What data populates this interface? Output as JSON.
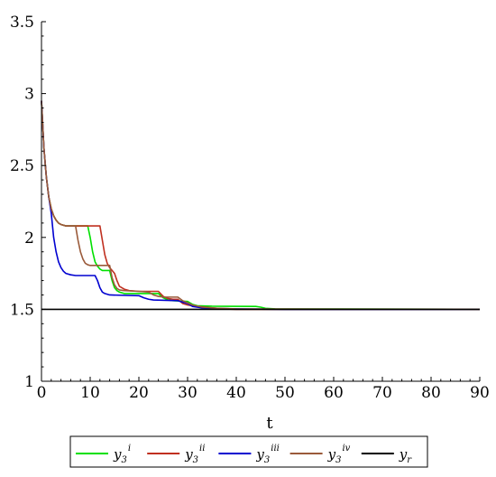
{
  "chart_data": {
    "type": "line",
    "xlabel": "t",
    "xlim": [
      0,
      90
    ],
    "ylim": [
      1,
      3.5
    ],
    "x_ticks": [
      "0",
      "10",
      "20",
      "30",
      "40",
      "50",
      "60",
      "70",
      "80",
      "90"
    ],
    "y_ticks": [
      "1",
      "1.5",
      "2",
      "2.5",
      "3",
      "3.5"
    ],
    "x_tick_values": [
      0,
      10,
      20,
      30,
      40,
      50,
      60,
      70,
      80,
      90
    ],
    "y_tick_values": [
      1,
      1.5,
      2,
      2.5,
      3,
      3.5
    ],
    "grid": false,
    "legend_position": "bottom",
    "series": [
      {
        "id": "y3i",
        "base": "y",
        "sub": "3",
        "sup": "i",
        "color": "#00e000",
        "points": [
          [
            0,
            2.95
          ],
          [
            0.5,
            2.62
          ],
          [
            1,
            2.42
          ],
          [
            1.5,
            2.28
          ],
          [
            2,
            2.2
          ],
          [
            2.5,
            2.15
          ],
          [
            3,
            2.12
          ],
          [
            3.5,
            2.1
          ],
          [
            4,
            2.09
          ],
          [
            5,
            2.08
          ],
          [
            9.5,
            2.08
          ],
          [
            10,
            2.0
          ],
          [
            10.5,
            1.9
          ],
          [
            11,
            1.83
          ],
          [
            11.5,
            1.8
          ],
          [
            12,
            1.78
          ],
          [
            12.5,
            1.77
          ],
          [
            14,
            1.77
          ],
          [
            14.5,
            1.7
          ],
          [
            15,
            1.65
          ],
          [
            15.5,
            1.63
          ],
          [
            16,
            1.62
          ],
          [
            17,
            1.61
          ],
          [
            24,
            1.61
          ],
          [
            25,
            1.58
          ],
          [
            26,
            1.565
          ],
          [
            27,
            1.56
          ],
          [
            30,
            1.555
          ],
          [
            31,
            1.535
          ],
          [
            32,
            1.525
          ],
          [
            35,
            1.522
          ],
          [
            44,
            1.52
          ],
          [
            45,
            1.515
          ],
          [
            46,
            1.507
          ],
          [
            48,
            1.503
          ],
          [
            90,
            1.5
          ]
        ]
      },
      {
        "id": "y3ii",
        "base": "y",
        "sub": "3",
        "sup": "ii",
        "color": "#c03020",
        "points": [
          [
            0,
            2.95
          ],
          [
            0.5,
            2.62
          ],
          [
            1,
            2.42
          ],
          [
            1.5,
            2.28
          ],
          [
            2,
            2.2
          ],
          [
            2.5,
            2.15
          ],
          [
            3,
            2.12
          ],
          [
            3.5,
            2.1
          ],
          [
            4,
            2.09
          ],
          [
            5,
            2.08
          ],
          [
            12,
            2.08
          ],
          [
            12.5,
            1.98
          ],
          [
            13,
            1.88
          ],
          [
            13.5,
            1.82
          ],
          [
            14,
            1.79
          ],
          [
            14.5,
            1.77
          ],
          [
            15,
            1.75
          ],
          [
            15.5,
            1.7
          ],
          [
            16,
            1.66
          ],
          [
            17,
            1.64
          ],
          [
            18,
            1.63
          ],
          [
            20,
            1.625
          ],
          [
            24,
            1.625
          ],
          [
            25,
            1.59
          ],
          [
            26,
            1.575
          ],
          [
            27,
            1.57
          ],
          [
            28,
            1.57
          ],
          [
            29,
            1.54
          ],
          [
            30,
            1.53
          ],
          [
            32,
            1.52
          ],
          [
            35,
            1.51
          ],
          [
            37,
            1.503
          ],
          [
            40,
            1.5
          ],
          [
            90,
            1.5
          ]
        ]
      },
      {
        "id": "y3iii",
        "base": "y",
        "sub": "3",
        "sup": "iii",
        "color": "#0000d0",
        "points": [
          [
            0,
            2.95
          ],
          [
            0.5,
            2.62
          ],
          [
            1,
            2.42
          ],
          [
            1.5,
            2.28
          ],
          [
            2,
            2.17
          ],
          [
            2.5,
            2.0
          ],
          [
            3,
            1.9
          ],
          [
            3.5,
            1.83
          ],
          [
            4,
            1.79
          ],
          [
            4.5,
            1.765
          ],
          [
            5,
            1.75
          ],
          [
            6,
            1.74
          ],
          [
            7,
            1.735
          ],
          [
            11,
            1.735
          ],
          [
            11.5,
            1.7
          ],
          [
            12,
            1.65
          ],
          [
            12.5,
            1.62
          ],
          [
            13,
            1.61
          ],
          [
            14,
            1.6
          ],
          [
            20,
            1.595
          ],
          [
            21,
            1.58
          ],
          [
            22,
            1.57
          ],
          [
            23,
            1.565
          ],
          [
            28,
            1.56
          ],
          [
            29,
            1.55
          ],
          [
            30,
            1.54
          ],
          [
            30.5,
            1.53
          ],
          [
            31,
            1.52
          ],
          [
            33,
            1.51
          ],
          [
            36,
            1.505
          ],
          [
            40,
            1.503
          ],
          [
            50,
            1.5
          ],
          [
            90,
            1.5
          ]
        ]
      },
      {
        "id": "y3iv",
        "base": "y",
        "sub": "3",
        "sup": "iv",
        "color": "#9a5a3a",
        "points": [
          [
            0,
            2.95
          ],
          [
            0.5,
            2.62
          ],
          [
            1,
            2.42
          ],
          [
            1.5,
            2.28
          ],
          [
            2,
            2.2
          ],
          [
            2.5,
            2.15
          ],
          [
            3,
            2.12
          ],
          [
            3.5,
            2.1
          ],
          [
            4,
            2.09
          ],
          [
            5,
            2.08
          ],
          [
            7,
            2.08
          ],
          [
            7.5,
            1.98
          ],
          [
            8,
            1.9
          ],
          [
            8.5,
            1.85
          ],
          [
            9,
            1.82
          ],
          [
            9.5,
            1.81
          ],
          [
            10,
            1.805
          ],
          [
            14,
            1.805
          ],
          [
            14.5,
            1.72
          ],
          [
            15,
            1.67
          ],
          [
            15.5,
            1.645
          ],
          [
            16,
            1.635
          ],
          [
            17,
            1.63
          ],
          [
            20,
            1.625
          ],
          [
            22,
            1.62
          ],
          [
            23,
            1.6
          ],
          [
            24,
            1.59
          ],
          [
            25,
            1.585
          ],
          [
            28,
            1.585
          ],
          [
            29,
            1.56
          ],
          [
            30,
            1.545
          ],
          [
            31,
            1.53
          ],
          [
            33,
            1.515
          ],
          [
            36,
            1.508
          ],
          [
            40,
            1.503
          ],
          [
            90,
            1.5
          ]
        ]
      },
      {
        "id": "yr",
        "base": "y",
        "sub": "r",
        "sup": "",
        "color": "#000000",
        "points": [
          [
            0,
            1.5
          ],
          [
            90,
            1.5
          ]
        ]
      }
    ]
  }
}
